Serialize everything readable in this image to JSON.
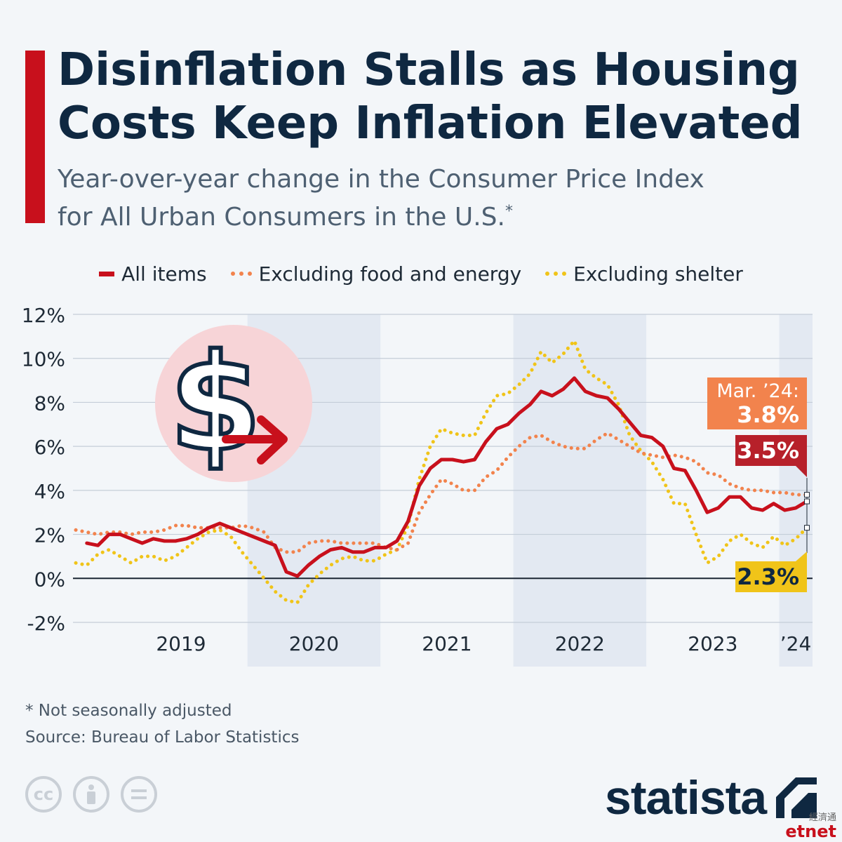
{
  "title": "Disinflation Stalls as Housing Costs Keep Inflation Elevated",
  "subtitle": {
    "line1": "Year-over-year change in the Consumer Price Index",
    "line2": "for All Urban Consumers in the U.S.",
    "marker": "*"
  },
  "legend": [
    {
      "label": "All items",
      "color": "#c8101c",
      "style": "solid"
    },
    {
      "label": "Excluding food and energy",
      "color": "#f2834d",
      "style": "dotted"
    },
    {
      "label": "Excluding shelter",
      "color": "#f0c419",
      "style": "dotted"
    }
  ],
  "annotations": {
    "core_label": "Mar. ’24:",
    "core_value": "3.8%",
    "all_value": "3.5%",
    "shelter_value": "2.3%"
  },
  "footnote": "* Not seasonally adjusted",
  "source": "Source: Bureau of Labor Statistics",
  "brand": "statista",
  "watermark": {
    "small": "經濟通",
    "big": "etnet"
  },
  "icons": [
    "cc-icon",
    "attribution-icon",
    "no-derivatives-icon",
    "dollar-icon",
    "arrow-right-icon",
    "statista-logo-icon"
  ],
  "colors": {
    "accent": "#c8101c",
    "all_items": "#c8101c",
    "core": "#f2834d",
    "ex_shelter": "#f0c419",
    "title": "#0f2841",
    "band": "#e3e9f2",
    "dollar_circle": "#f7d4d7",
    "core_box": "#f2834d",
    "all_box": "#b7202a",
    "shelter_box": "#f0c419"
  },
  "chart_data": {
    "type": "line",
    "title": "Disinflation Stalls as Housing Costs Keep Inflation Elevated",
    "xlabel": "",
    "ylabel": "",
    "x_start": "2018-09",
    "x_end": "2024-03",
    "x_ticks": [
      "2019",
      "2020",
      "2021",
      "2022",
      "2023",
      "’24"
    ],
    "y_ticks": [
      "12%",
      "10%",
      "8%",
      "6%",
      "4%",
      "2%",
      "0%",
      "-2%"
    ],
    "ylim": [
      -2,
      12
    ],
    "grid": true,
    "legend_position": "top",
    "series": [
      {
        "name": "All items",
        "values": [
          1.6,
          1.5,
          2.0,
          2.0,
          1.8,
          1.6,
          1.8,
          1.7,
          1.7,
          1.8,
          2.0,
          2.3,
          2.5,
          2.3,
          1.5,
          0.3,
          0.1,
          0.6,
          1.0,
          1.3,
          1.4,
          1.2,
          1.2,
          1.4,
          1.4,
          1.7,
          2.6,
          4.2,
          5.0,
          5.4,
          5.4,
          5.3,
          5.4,
          6.2,
          6.8,
          7.0,
          7.5,
          7.9,
          8.5,
          8.3,
          8.6,
          9.1,
          8.5,
          8.3,
          8.2,
          7.7,
          7.1,
          6.5,
          6.4,
          6.0,
          5.0,
          4.9,
          4.0,
          3.0,
          3.2,
          3.7,
          3.7,
          3.2,
          3.1,
          3.4,
          3.1,
          3.2,
          3.5
        ],
        "x_values": [
          "2018-10",
          "2018-11",
          "2018-12",
          "2019-01",
          "2019-02",
          "2019-03",
          "2019-04",
          "2019-05",
          "2019-06",
          "2019-07",
          "2019-08",
          "2019-09",
          "2019-10",
          "2019-11",
          "2020-03",
          "2020-04",
          "2020-05",
          "2020-06",
          "2020-07",
          "2020-08",
          "2020-09",
          "2020-10",
          "2020-11",
          "2020-12",
          "2021-01",
          "2021-02",
          "2021-03",
          "2021-04",
          "2021-05",
          "2021-06",
          "2021-07",
          "2021-08",
          "2021-09",
          "2021-10",
          "2021-11",
          "2021-12",
          "2022-01",
          "2022-02",
          "2022-03",
          "2022-04",
          "2022-05",
          "2022-06",
          "2022-07",
          "2022-08",
          "2022-09",
          "2022-10",
          "2022-11",
          "2022-12",
          "2023-01",
          "2023-02",
          "2023-03",
          "2023-04",
          "2023-05",
          "2023-06",
          "2023-07",
          "2023-08",
          "2023-09",
          "2023-10",
          "2023-11",
          "2023-12",
          "2024-01",
          "2024-02",
          "2024-03"
        ]
      },
      {
        "name": "Excluding food and energy",
        "values": [
          2.2,
          2.1,
          2.0,
          2.1,
          2.1,
          2.0,
          2.1,
          2.1,
          2.2,
          2.4,
          2.4,
          2.3,
          2.3,
          2.3,
          2.3,
          2.4,
          2.3,
          2.1,
          1.4,
          1.2,
          1.2,
          1.6,
          1.7,
          1.7,
          1.6,
          1.6,
          1.6,
          1.6,
          1.4,
          1.3,
          1.6,
          3.0,
          3.8,
          4.5,
          4.3,
          4.0,
          4.0,
          4.6,
          4.9,
          5.5,
          6.0,
          6.4,
          6.5,
          6.2,
          6.0,
          5.9,
          5.9,
          6.3,
          6.6,
          6.3,
          6.0,
          5.7,
          5.6,
          5.5,
          5.6,
          5.5,
          5.3,
          4.8,
          4.7,
          4.3,
          4.1,
          4.0,
          4.0,
          3.9,
          3.9,
          3.8,
          3.8
        ],
        "x_values": [
          "2018-09",
          "2018-10",
          "2018-11",
          "2018-12",
          "2019-01",
          "2019-02",
          "2019-03",
          "2019-04",
          "2019-05",
          "2019-06",
          "2019-07",
          "2019-08",
          "2019-09",
          "2019-10",
          "2019-11",
          "2019-12",
          "2020-01",
          "2020-02",
          "2020-03",
          "2020-04",
          "2020-05",
          "2020-06",
          "2020-07",
          "2020-08",
          "2020-09",
          "2020-10",
          "2020-11",
          "2020-12",
          "2021-01",
          "2021-02",
          "2021-03",
          "2021-04",
          "2021-05",
          "2021-06",
          "2021-07",
          "2021-08",
          "2021-09",
          "2021-10",
          "2021-11",
          "2021-12",
          "2022-01",
          "2022-02",
          "2022-03",
          "2022-04",
          "2022-05",
          "2022-06",
          "2022-07",
          "2022-08",
          "2022-09",
          "2022-10",
          "2022-11",
          "2022-12",
          "2023-01",
          "2023-02",
          "2023-03",
          "2023-04",
          "2023-05",
          "2023-06",
          "2023-07",
          "2023-08",
          "2023-09",
          "2023-10",
          "2023-11",
          "2023-12",
          "2024-01",
          "2024-02",
          "2024-03"
        ]
      },
      {
        "name": "Excluding shelter",
        "values": [
          0.7,
          0.6,
          1.1,
          1.3,
          1.0,
          0.7,
          1.0,
          1.0,
          0.8,
          1.0,
          1.4,
          1.8,
          2.1,
          2.2,
          1.9,
          1.2,
          -0.6,
          -1.0,
          -1.1,
          -0.3,
          0.2,
          0.6,
          0.9,
          1.0,
          0.8,
          0.8,
          1.1,
          1.3,
          2.4,
          4.5,
          6.0,
          6.8,
          6.6,
          6.5,
          6.5,
          7.5,
          8.3,
          8.4,
          8.8,
          9.3,
          10.3,
          9.8,
          10.2,
          10.8,
          9.5,
          9.1,
          8.8,
          7.9,
          6.5,
          5.8,
          5.3,
          4.5,
          3.4,
          3.4,
          2.0,
          0.7,
          1.0,
          1.7,
          2.0,
          1.6,
          1.4,
          1.9,
          1.5,
          1.8,
          2.3
        ],
        "x_values": [
          "2018-09",
          "2018-10",
          "2018-11",
          "2018-12",
          "2019-01",
          "2019-02",
          "2019-03",
          "2019-04",
          "2019-05",
          "2019-06",
          "2019-07",
          "2019-08",
          "2019-09",
          "2019-10",
          "2019-11",
          "2019-12",
          "2020-03",
          "2020-04",
          "2020-05",
          "2020-06",
          "2020-07",
          "2020-08",
          "2020-09",
          "2020-10",
          "2020-11",
          "2020-12",
          "2021-01",
          "2021-02",
          "2021-03",
          "2021-04",
          "2021-05",
          "2021-06",
          "2021-07",
          "2021-08",
          "2021-09",
          "2021-10",
          "2021-11",
          "2021-12",
          "2022-01",
          "2022-02",
          "2022-03",
          "2022-04",
          "2022-05",
          "2022-06",
          "2022-07",
          "2022-08",
          "2022-09",
          "2022-10",
          "2022-11",
          "2022-12",
          "2023-01",
          "2023-02",
          "2023-03",
          "2023-04",
          "2023-05",
          "2023-06",
          "2023-07",
          "2023-08",
          "2023-09",
          "2023-10",
          "2023-11",
          "2023-12",
          "2024-01",
          "2024-02",
          "2024-03"
        ]
      }
    ]
  }
}
